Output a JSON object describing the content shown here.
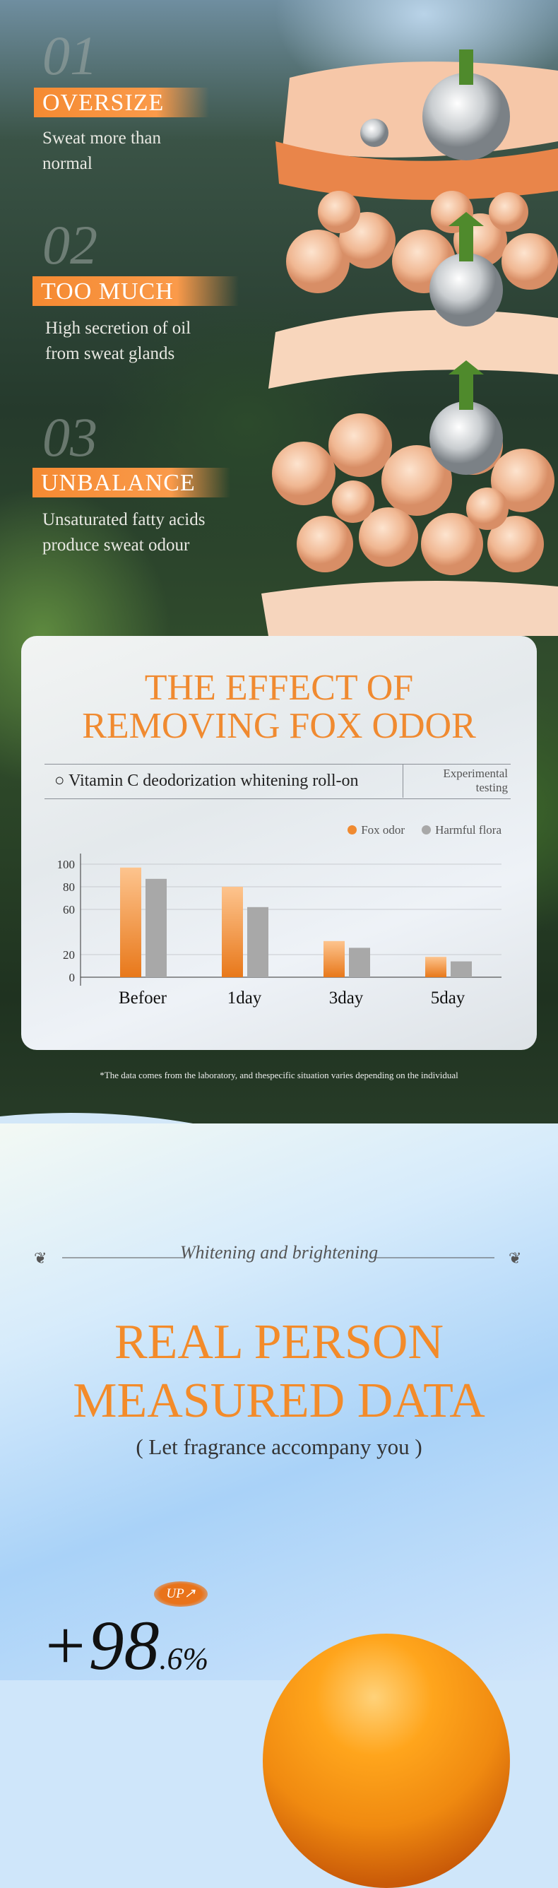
{
  "features": [
    {
      "number": "01",
      "title": "OVERSIZE",
      "desc_line1": "Sweat more than",
      "desc_line2": "normal"
    },
    {
      "number": "02",
      "title": "TOO MUCH",
      "desc_line1": "High secretion of oil",
      "desc_line2": "from sweat glands"
    },
    {
      "number": "03",
      "title": "UNBALANCE",
      "desc_line1": "Unsaturated fatty acids",
      "desc_line2": "produce sweat odour"
    }
  ],
  "effect": {
    "title_line1": "THE EFFECT OF",
    "title_line2": "REMOVING FOX ODOR",
    "product": "○ Vitamin C  deodorization whitening roll-on",
    "test_line1": "Experimental",
    "test_line2": "testing"
  },
  "chart_data": {
    "type": "bar",
    "categories": [
      "Befoer",
      "1day",
      "3day",
      "5day"
    ],
    "series": [
      {
        "name": "Fox odor",
        "color": "#f08a30",
        "values": [
          97,
          80,
          32,
          18
        ]
      },
      {
        "name": "Harmful flora",
        "color": "#a8a8a8",
        "values": [
          87,
          62,
          26,
          14
        ]
      }
    ],
    "yticks": [
      "0",
      "20",
      "60",
      "80",
      "100"
    ],
    "ylim": [
      0,
      110
    ],
    "grid": true,
    "legend": "top-right"
  },
  "footnote": "*The data comes from the laboratory, and thespecific situation varies depending on the individual",
  "measured": {
    "tagline": "Whitening and brightening",
    "title_line1": "REAL PERSON",
    "title_line2": "MEASURED DATA",
    "subtitle": "( Let fragrance accompany you )",
    "stat_int": "+98",
    "stat_dec": ".6%",
    "badge": "UP↗"
  }
}
